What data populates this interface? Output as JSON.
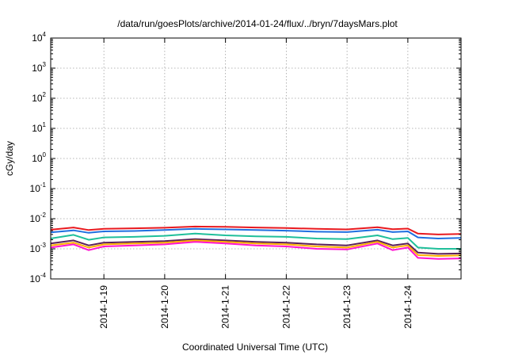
{
  "chart_data": {
    "type": "line",
    "title": "/data/run/goesPlots/archive/2014-01-24/flux/../bryn/7daysMars.plot",
    "xlabel": "Coordinated Universal Time (UTC)",
    "ylabel": "cGy/day",
    "yscale": "log",
    "ylim": [
      0.0001,
      10000
    ],
    "xlim": [
      "2014-01-18T03:00",
      "2014-01-24T21:00"
    ],
    "yticks": [
      {
        "base": "10",
        "exp": "-4"
      },
      {
        "base": "10",
        "exp": "-3"
      },
      {
        "base": "10",
        "exp": "-2"
      },
      {
        "base": "10",
        "exp": "-1"
      },
      {
        "base": "10",
        "exp": "0"
      },
      {
        "base": "10",
        "exp": "1"
      },
      {
        "base": "10",
        "exp": "2"
      },
      {
        "base": "10",
        "exp": "3"
      },
      {
        "base": "10",
        "exp": "4"
      }
    ],
    "xticks": [
      {
        "label": "2014-1-19",
        "x": "2014-01-19T00:00"
      },
      {
        "label": "2014-1-20",
        "x": "2014-01-20T00:00"
      },
      {
        "label": "2014-1-21",
        "x": "2014-01-21T00:00"
      },
      {
        "label": "2014-1-22",
        "x": "2014-01-22T00:00"
      },
      {
        "label": "2014-1-23",
        "x": "2014-01-23T00:00"
      },
      {
        "label": "2014-1-24",
        "x": "2014-01-24T00:00"
      }
    ],
    "grid": true,
    "series": [
      {
        "color": "#e8191f",
        "x": [
          "2014-01-18T03:00",
          "2014-01-18T12:00",
          "2014-01-18T18:00",
          "2014-01-19T00:00",
          "2014-01-19T12:00",
          "2014-01-20T00:00",
          "2014-01-20T12:00",
          "2014-01-21T00:00",
          "2014-01-21T12:00",
          "2014-01-22T00:00",
          "2014-01-22T12:00",
          "2014-01-23T00:00",
          "2014-01-23T12:00",
          "2014-01-23T18:00",
          "2014-01-24T00:00",
          "2014-01-24T04:00",
          "2014-01-24T12:00",
          "2014-01-24T21:00"
        ],
        "values": [
          0.0043,
          0.0051,
          0.0042,
          0.0046,
          0.0048,
          0.005,
          0.0055,
          0.0054,
          0.0051,
          0.0049,
          0.0046,
          0.0044,
          0.0052,
          0.0045,
          0.0047,
          0.0032,
          0.003,
          0.0031
        ]
      },
      {
        "color": "#1f6fe0",
        "x": [
          "2014-01-18T03:00",
          "2014-01-18T12:00",
          "2014-01-18T18:00",
          "2014-01-19T00:00",
          "2014-01-19T12:00",
          "2014-01-20T00:00",
          "2014-01-20T12:00",
          "2014-01-21T00:00",
          "2014-01-21T12:00",
          "2014-01-22T00:00",
          "2014-01-22T12:00",
          "2014-01-23T00:00",
          "2014-01-23T12:00",
          "2014-01-23T18:00",
          "2014-01-24T00:00",
          "2014-01-24T04:00",
          "2014-01-24T12:00",
          "2014-01-24T21:00"
        ],
        "values": [
          0.0035,
          0.0041,
          0.0034,
          0.0038,
          0.0039,
          0.0042,
          0.0046,
          0.0044,
          0.0042,
          0.004,
          0.0037,
          0.0036,
          0.0043,
          0.0036,
          0.0038,
          0.0024,
          0.0022,
          0.0023
        ]
      },
      {
        "color": "#1fbf9a",
        "x": [
          "2014-01-18T03:00",
          "2014-01-18T12:00",
          "2014-01-18T18:00",
          "2014-01-19T00:00",
          "2014-01-19T12:00",
          "2014-01-20T00:00",
          "2014-01-20T12:00",
          "2014-01-21T00:00",
          "2014-01-21T12:00",
          "2014-01-22T00:00",
          "2014-01-22T12:00",
          "2014-01-23T00:00",
          "2014-01-23T12:00",
          "2014-01-23T18:00",
          "2014-01-24T00:00",
          "2014-01-24T04:00",
          "2014-01-24T12:00",
          "2014-01-24T21:00"
        ],
        "values": [
          0.0022,
          0.0029,
          0.002,
          0.0024,
          0.0025,
          0.0027,
          0.0032,
          0.0028,
          0.0026,
          0.0025,
          0.0022,
          0.0021,
          0.0028,
          0.0021,
          0.0023,
          0.0011,
          0.001,
          0.001
        ]
      },
      {
        "color": "#5a1f5a",
        "x": [
          "2014-01-18T03:00",
          "2014-01-18T12:00",
          "2014-01-18T18:00",
          "2014-01-19T00:00",
          "2014-01-19T12:00",
          "2014-01-20T00:00",
          "2014-01-20T12:00",
          "2014-01-21T00:00",
          "2014-01-21T12:00",
          "2014-01-22T00:00",
          "2014-01-22T12:00",
          "2014-01-23T00:00",
          "2014-01-23T12:00",
          "2014-01-23T18:00",
          "2014-01-24T00:00",
          "2014-01-24T04:00",
          "2014-01-24T12:00",
          "2014-01-24T21:00"
        ],
        "values": [
          0.0015,
          0.0019,
          0.0013,
          0.0016,
          0.0017,
          0.0018,
          0.0021,
          0.0019,
          0.0017,
          0.0016,
          0.0014,
          0.0013,
          0.0019,
          0.0013,
          0.0015,
          0.00075,
          0.00068,
          0.0007
        ]
      },
      {
        "color": "#ffb000",
        "x": [
          "2014-01-18T03:00",
          "2014-01-18T12:00",
          "2014-01-18T18:00",
          "2014-01-19T00:00",
          "2014-01-19T12:00",
          "2014-01-20T00:00",
          "2014-01-20T12:00",
          "2014-01-21T00:00",
          "2014-01-21T12:00",
          "2014-01-22T00:00",
          "2014-01-22T12:00",
          "2014-01-23T00:00",
          "2014-01-23T12:00",
          "2014-01-23T18:00",
          "2014-01-24T00:00",
          "2014-01-24T04:00",
          "2014-01-24T12:00",
          "2014-01-24T21:00"
        ],
        "values": [
          0.0013,
          0.0016,
          0.0011,
          0.0014,
          0.0015,
          0.0016,
          0.0019,
          0.0017,
          0.0015,
          0.0014,
          0.0012,
          0.0011,
          0.0017,
          0.0011,
          0.0013,
          0.00062,
          0.00058,
          0.0006
        ]
      },
      {
        "color": "#ff14d0",
        "x": [
          "2014-01-18T03:00",
          "2014-01-18T12:00",
          "2014-01-18T18:00",
          "2014-01-19T00:00",
          "2014-01-19T12:00",
          "2014-01-20T00:00",
          "2014-01-20T12:00",
          "2014-01-21T00:00",
          "2014-01-21T12:00",
          "2014-01-22T00:00",
          "2014-01-22T12:00",
          "2014-01-23T00:00",
          "2014-01-23T12:00",
          "2014-01-23T18:00",
          "2014-01-24T00:00",
          "2014-01-24T04:00",
          "2014-01-24T12:00",
          "2014-01-24T21:00"
        ],
        "values": [
          0.0011,
          0.0014,
          0.0009,
          0.0012,
          0.0013,
          0.0014,
          0.0017,
          0.0015,
          0.0013,
          0.0012,
          0.001,
          0.00095,
          0.0015,
          0.0009,
          0.0011,
          0.0005,
          0.00046,
          0.00048
        ]
      }
    ]
  }
}
